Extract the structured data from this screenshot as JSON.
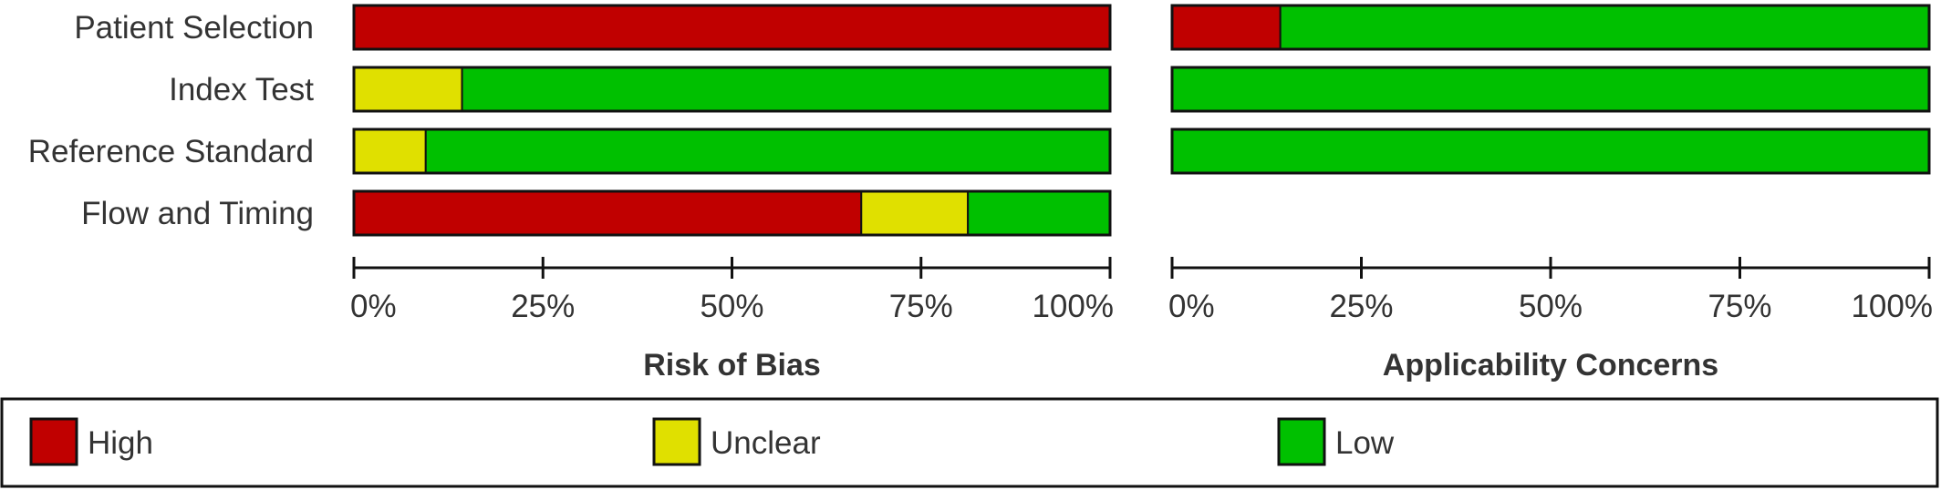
{
  "chart_data": {
    "type": "bar",
    "stacked": true,
    "orientation": "horizontal",
    "normalized": true,
    "domains": [
      "Patient Selection",
      "Index Test",
      "Reference Standard",
      "Flow and Timing"
    ],
    "categories": [
      {
        "name": "High",
        "color": "#c00000"
      },
      {
        "name": "Unclear",
        "color": "#e0e000"
      },
      {
        "name": "Low",
        "color": "#00c000"
      }
    ],
    "panels": [
      {
        "title": "Risk of Bias",
        "xlim": [
          0,
          100
        ],
        "ticks": [
          "0%",
          "25%",
          "50%",
          "75%",
          "100%"
        ],
        "rows": [
          {
            "domain": "Patient Selection",
            "values": [
              100,
              0,
              0
            ]
          },
          {
            "domain": "Index Test",
            "values": [
              0,
              14.3,
              85.7
            ]
          },
          {
            "domain": "Reference Standard",
            "values": [
              0,
              9.5,
              90.5
            ]
          },
          {
            "domain": "Flow and Timing",
            "values": [
              67.1,
              14.1,
              18.8
            ]
          }
        ]
      },
      {
        "title": "Applicability Concerns",
        "xlim": [
          0,
          100
        ],
        "ticks": [
          "0%",
          "25%",
          "50%",
          "75%",
          "100%"
        ],
        "rows": [
          {
            "domain": "Patient Selection",
            "values": [
              14.3,
              0,
              85.7
            ]
          },
          {
            "domain": "Index Test",
            "values": [
              0,
              0,
              100
            ]
          },
          {
            "domain": "Reference Standard",
            "values": [
              0,
              0,
              100
            ]
          }
        ]
      }
    ],
    "legend": {
      "position": "bottom",
      "items": [
        "High",
        "Unclear",
        "Low"
      ]
    }
  }
}
